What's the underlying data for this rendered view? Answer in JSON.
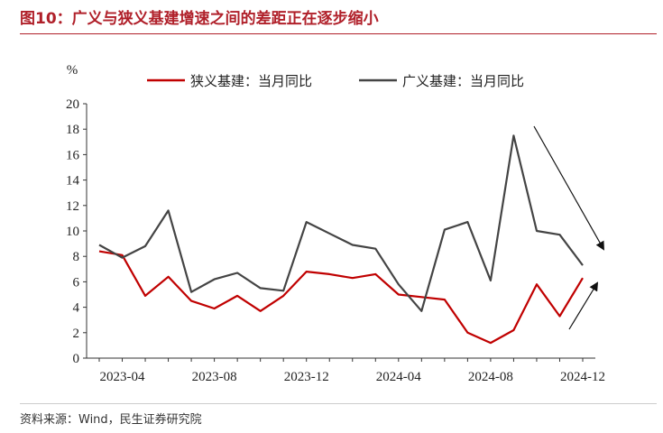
{
  "title": "图10：广义与狭义基建增速之间的差距正在逐步缩小",
  "source": "资料来源：Wind，民生证券研究院",
  "chart_data": {
    "type": "line",
    "unit_label": "%",
    "x": [
      "2023-03",
      "2023-04",
      "2023-05",
      "2023-06",
      "2023-07",
      "2023-08",
      "2023-09",
      "2023-10",
      "2023-11",
      "2023-12",
      "2024-01",
      "2024-02",
      "2024-03",
      "2024-04",
      "2024-05",
      "2024-06",
      "2024-07",
      "2024-08",
      "2024-09",
      "2024-10",
      "2024-11",
      "2024-12"
    ],
    "x_tick_labels": [
      "2023-04",
      "2023-08",
      "2023-12",
      "2024-04",
      "2024-08",
      "2024-12"
    ],
    "ylim": [
      0,
      20
    ],
    "y_ticks": [
      0,
      2,
      4,
      6,
      8,
      10,
      12,
      14,
      16,
      18,
      20
    ],
    "legend_position": "top",
    "grid": false,
    "series": [
      {
        "name": "狭义基建：当月同比",
        "color": "#c00000",
        "values": [
          8.4,
          8.1,
          4.9,
          6.4,
          4.5,
          3.9,
          4.9,
          3.7,
          4.9,
          6.8,
          6.6,
          6.3,
          6.6,
          5.0,
          4.8,
          4.6,
          2.0,
          1.2,
          2.2,
          5.8,
          3.3,
          6.3
        ]
      },
      {
        "name": "广义基建：当月同比",
        "color": "#444444",
        "values": [
          8.9,
          7.9,
          8.8,
          11.6,
          5.2,
          6.2,
          6.7,
          5.5,
          5.3,
          10.7,
          9.8,
          8.9,
          8.6,
          5.8,
          3.7,
          10.1,
          10.7,
          6.1,
          17.5,
          10.0,
          9.7,
          7.3
        ]
      }
    ],
    "annotations": [
      {
        "type": "arrow",
        "direction": "down-right"
      },
      {
        "type": "arrow",
        "direction": "up-right"
      }
    ],
    "colors": {
      "axis": "#333333",
      "arrow": "#111111",
      "title": "#b0202a"
    }
  }
}
